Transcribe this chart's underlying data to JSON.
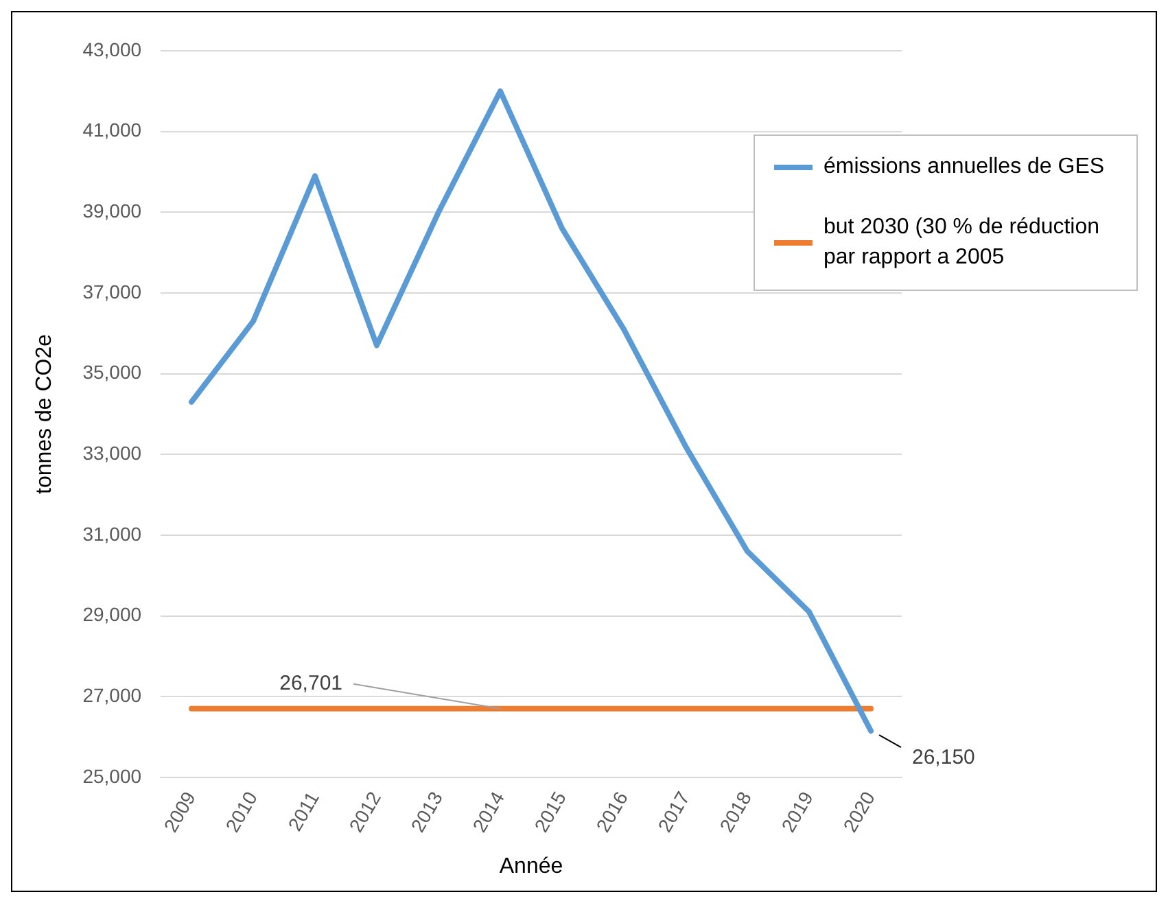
{
  "chart_data": {
    "type": "line",
    "xlabel": "Année",
    "ylabel": "tonnes de CO2e",
    "categories": [
      "2009",
      "2010",
      "2011",
      "2012",
      "2013",
      "2014",
      "2015",
      "2016",
      "2017",
      "2018",
      "2019",
      "2020"
    ],
    "series": [
      {
        "name": "émissions annuelles de GES",
        "color": "#5b9bd5",
        "values": [
          34300,
          36300,
          39900,
          35700,
          39000,
          42000,
          38600,
          36100,
          33200,
          30600,
          29100,
          26150
        ],
        "value_labels": [
          null,
          null,
          null,
          null,
          null,
          null,
          null,
          null,
          null,
          null,
          null,
          "26,150"
        ]
      },
      {
        "name": "but 2030 (30 % de réduction par rapport a 2005",
        "color": "#ed7d31",
        "values": [
          26701,
          26701,
          26701,
          26701,
          26701,
          26701,
          26701,
          26701,
          26701,
          26701,
          26701,
          26701
        ],
        "value_labels": [
          null,
          null,
          null,
          null,
          null,
          "26,701",
          null,
          null,
          null,
          null,
          null,
          null
        ]
      }
    ],
    "ylim": [
      25000,
      43000
    ],
    "yticks": [
      {
        "value": 25000,
        "label": "25,000"
      },
      {
        "value": 27000,
        "label": "27,000"
      },
      {
        "value": 29000,
        "label": "29,000"
      },
      {
        "value": 31000,
        "label": "31,000"
      },
      {
        "value": 33000,
        "label": "33,000"
      },
      {
        "value": 35000,
        "label": "35,000"
      },
      {
        "value": 37000,
        "label": "37,000"
      },
      {
        "value": 39000,
        "label": "39,000"
      },
      {
        "value": 41000,
        "label": "41,000"
      },
      {
        "value": 43000,
        "label": "43,000"
      }
    ],
    "grid": "y",
    "legend": "top right",
    "marker": "none",
    "line_style": "solid"
  }
}
